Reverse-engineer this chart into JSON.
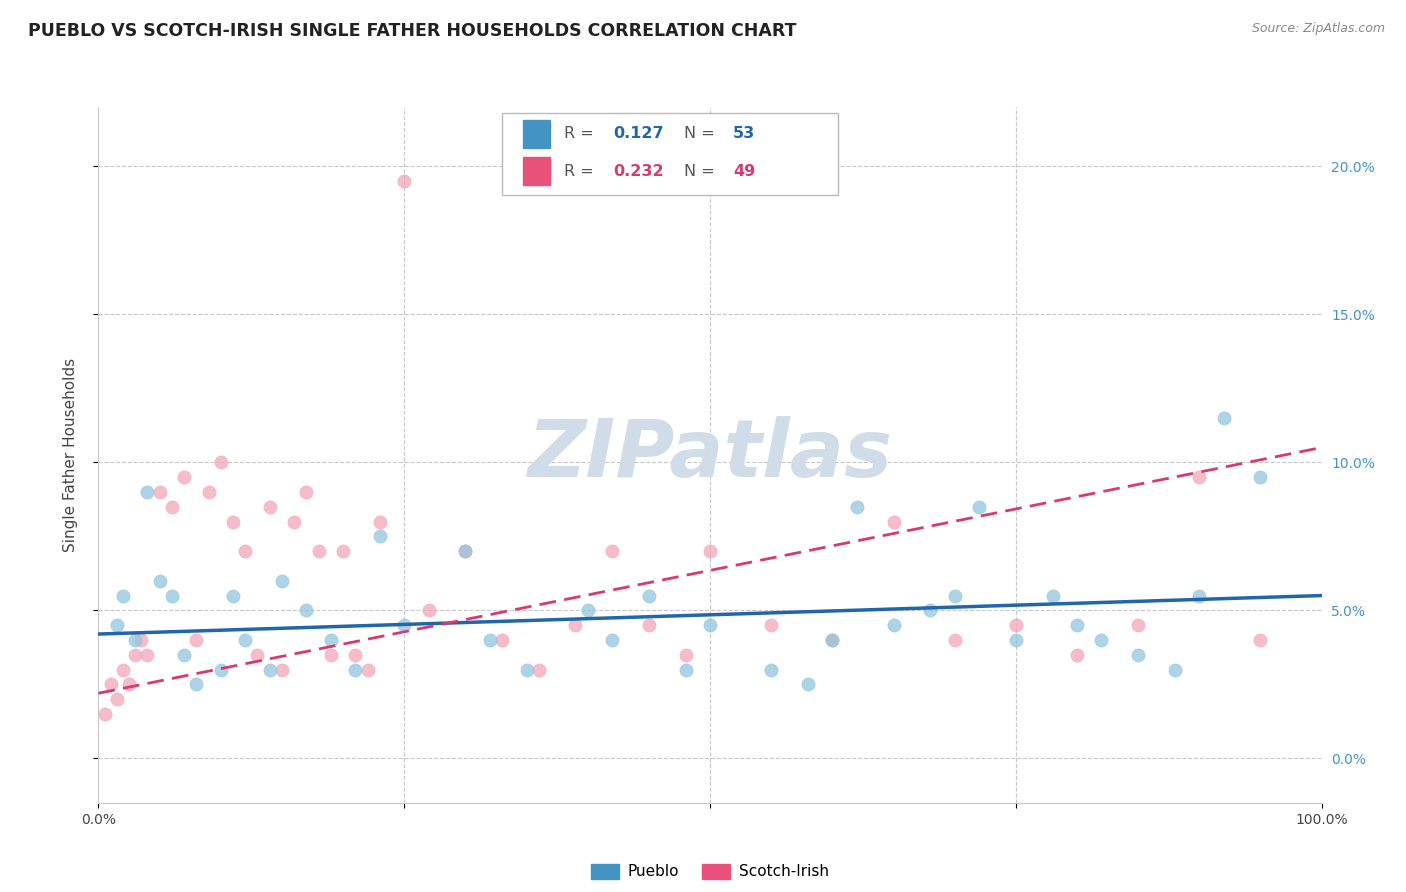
{
  "title": "PUEBLO VS SCOTCH-IRISH SINGLE FATHER HOUSEHOLDS CORRELATION CHART",
  "source": "Source: ZipAtlas.com",
  "ylabel": "Single Father Households",
  "blue_color": "#92c5de",
  "pink_color": "#f4a6b8",
  "blue_line_color": "#2166ac",
  "pink_line_color": "#d63a6e",
  "blue_legend_color": "#4393c3",
  "pink_legend_color": "#e8527a",
  "legend_r1": "0.127",
  "legend_n1": "53",
  "legend_r2": "0.232",
  "legend_n2": "49",
  "pueblo_x": [
    1.5,
    2,
    3,
    4,
    5,
    6,
    7,
    8,
    10,
    11,
    12,
    14,
    15,
    17,
    19,
    21,
    23,
    25,
    30,
    32,
    35,
    40,
    42,
    45,
    48,
    50,
    55,
    58,
    60,
    62,
    65,
    68,
    70,
    72,
    75,
    78,
    80,
    82,
    85,
    88,
    90,
    92,
    95
  ],
  "pueblo_y": [
    4.5,
    5.5,
    4.0,
    9.0,
    6.0,
    5.5,
    3.5,
    2.5,
    3.0,
    5.5,
    4.0,
    3.0,
    6.0,
    5.0,
    4.0,
    3.0,
    7.5,
    4.5,
    7.0,
    4.0,
    3.0,
    5.0,
    4.0,
    5.5,
    3.0,
    4.5,
    3.0,
    2.5,
    4.0,
    8.5,
    4.5,
    5.0,
    5.5,
    8.5,
    4.0,
    5.5,
    4.5,
    4.0,
    3.5,
    3.0,
    5.5,
    11.5,
    9.5
  ],
  "scotch_x": [
    0.5,
    1.0,
    1.5,
    2.0,
    2.5,
    3.0,
    3.5,
    4.0,
    5.0,
    6.0,
    7.0,
    8.0,
    9.0,
    10.0,
    11.0,
    12.0,
    13.0,
    14.0,
    15.0,
    16.0,
    17.0,
    18.0,
    19.0,
    20.0,
    21.0,
    22.0,
    23.0,
    25.0,
    27.0,
    30.0,
    33.0,
    36.0,
    39.0,
    42.0,
    45.0,
    48.0,
    50.0,
    55.0,
    60.0,
    65.0,
    70.0,
    75.0,
    80.0,
    85.0,
    90.0,
    95.0
  ],
  "scotch_y": [
    1.5,
    2.5,
    2.0,
    3.0,
    2.5,
    3.5,
    4.0,
    3.5,
    9.0,
    8.5,
    9.5,
    4.0,
    9.0,
    10.0,
    8.0,
    7.0,
    3.5,
    8.5,
    3.0,
    8.0,
    9.0,
    7.0,
    3.5,
    7.0,
    3.5,
    3.0,
    8.0,
    19.5,
    5.0,
    7.0,
    4.0,
    3.0,
    4.5,
    7.0,
    4.5,
    3.5,
    7.0,
    4.5,
    4.0,
    8.0,
    4.0,
    4.5,
    3.5,
    4.5,
    9.5,
    4.0
  ],
  "blue_trend_x": [
    0,
    100
  ],
  "blue_trend_y": [
    4.2,
    5.5
  ],
  "pink_trend_x": [
    0,
    100
  ],
  "pink_trend_y": [
    2.2,
    10.5
  ],
  "yticks": [
    0,
    5,
    10,
    15,
    20
  ],
  "ytick_labels": [
    "0.0%",
    "5.0%",
    "10.0%",
    "15.0%",
    "20.0%"
  ],
  "xticks": [
    0,
    25,
    50,
    75,
    100
  ],
  "xtick_labels_show": [
    "0.0%",
    "",
    "",
    "",
    "100.0%"
  ],
  "xlim": [
    0,
    100
  ],
  "ylim": [
    -1.5,
    22
  ]
}
